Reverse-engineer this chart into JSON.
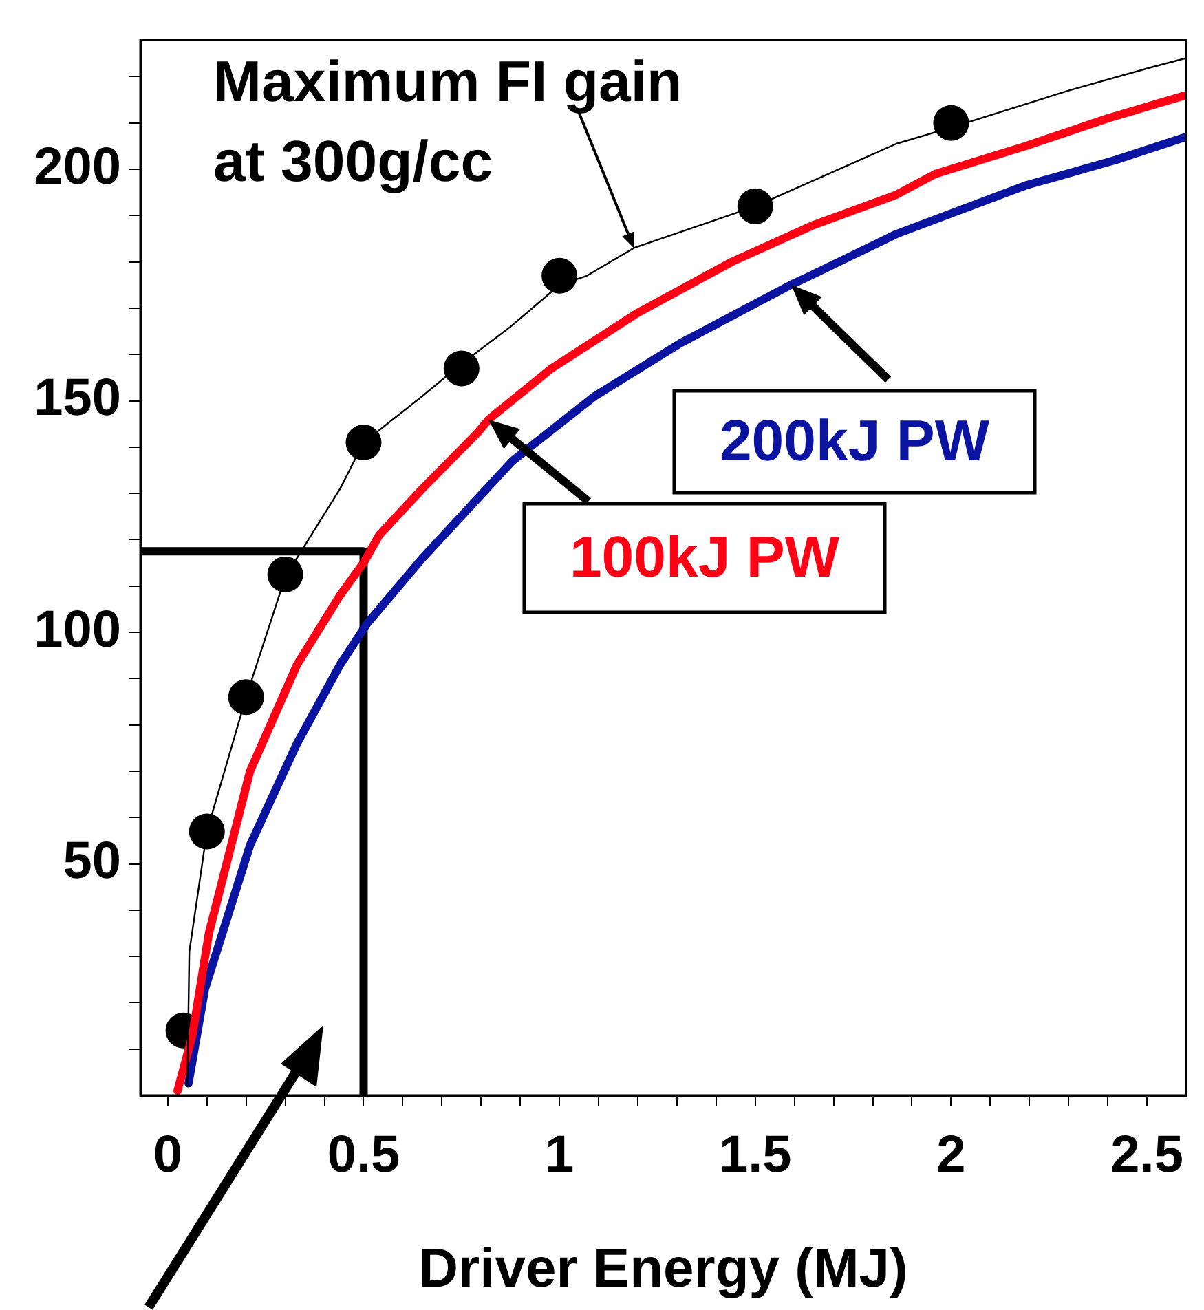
{
  "chart_data": {
    "type": "line",
    "xlabel": "Driver Energy (MJ)",
    "xlim": [
      -0.07,
      2.6
    ],
    "ylim": [
      0,
      228
    ],
    "xticks": [
      {
        "value": 0,
        "label": "0"
      },
      {
        "value": 0.1,
        "label": null
      },
      {
        "value": 0.2,
        "label": null
      },
      {
        "value": 0.3,
        "label": null
      },
      {
        "value": 0.4,
        "label": null
      },
      {
        "value": 0.5,
        "label": "0.5"
      },
      {
        "value": 0.6,
        "label": null
      },
      {
        "value": 0.7,
        "label": null
      },
      {
        "value": 0.8,
        "label": null
      },
      {
        "value": 0.9,
        "label": null
      },
      1,
      {
        "value": 1.1,
        "label": null
      },
      {
        "value": 1.2,
        "label": null
      },
      {
        "value": 1.3,
        "label": null
      },
      {
        "value": 1.4,
        "label": null
      },
      {
        "value": 1.5,
        "label": "1.5"
      },
      {
        "value": 1.6,
        "label": null
      },
      {
        "value": 1.7,
        "label": null
      },
      {
        "value": 1.8,
        "label": null
      },
      {
        "value": 1.9,
        "label": null
      },
      2,
      {
        "value": 2.1,
        "label": null
      },
      {
        "value": 2.2,
        "label": null
      },
      {
        "value": 2.3,
        "label": null
      },
      {
        "value": 2.4,
        "label": null
      },
      {
        "value": 2.5,
        "label": "2.5"
      }
    ],
    "yticks": [
      {
        "value": 10,
        "label": null
      },
      {
        "value": 20,
        "label": null
      },
      {
        "value": 30,
        "label": null
      },
      {
        "value": 40,
        "label": null
      },
      50,
      {
        "value": 60,
        "label": null
      },
      {
        "value": 70,
        "label": null
      },
      {
        "value": 80,
        "label": null
      },
      {
        "value": 90,
        "label": null
      },
      100,
      {
        "value": 110,
        "label": null
      },
      {
        "value": 120,
        "label": null
      },
      {
        "value": 130,
        "label": null
      },
      {
        "value": 140,
        "label": null
      },
      150,
      {
        "value": 160,
        "label": null
      },
      {
        "value": 170,
        "label": null
      },
      {
        "value": 180,
        "label": null
      },
      {
        "value": 190,
        "label": null
      },
      200,
      {
        "value": 210,
        "label": null
      },
      {
        "value": 220,
        "label": null
      }
    ],
    "grid": false,
    "legend": false,
    "marker": "none",
    "line_style": "solid",
    "annotations": [
      {
        "text": "Maximum FI gain at 300g/cc",
        "x": 1.19,
        "y": 183
      },
      {
        "text": "100kJ PW",
        "x": 0.82,
        "y": 146
      },
      {
        "text": "200kJ PW",
        "x": 1.59,
        "y": 175
      }
    ],
    "series": [
      {
        "color": "#000000",
        "x": [
          0.05,
          0.055,
          0.1,
          0.2,
          0.3,
          0.44,
          0.5,
          0.65,
          0.75,
          0.875,
          1.0,
          1.07,
          1.19,
          1.5,
          1.86,
          2.0,
          2.3,
          2.51,
          2.6
        ],
        "values": [
          2,
          31,
          57,
          86,
          112,
          131,
          141,
          151,
          158,
          166,
          175,
          177,
          183,
          192,
          205.5,
          209,
          217,
          222,
          224
        ]
      },
      {
        "type": "scatter",
        "marker": "circle",
        "color": "#000000",
        "x": [
          0.04,
          0.1,
          0.2,
          0.3,
          0.5,
          0.75,
          1.0,
          1.5,
          2.0
        ],
        "values": [
          14,
          57,
          86,
          112.5,
          141,
          157,
          177,
          192,
          210
        ]
      },
      {
        "color": "#ff0015",
        "x": [
          0.025,
          0.063,
          0.105,
          0.21,
          0.33,
          0.44,
          0.5,
          0.54,
          0.65,
          0.79,
          0.82,
          0.98,
          1.2,
          1.44,
          1.65,
          1.86,
          1.96,
          2.19,
          2.4,
          2.6
        ],
        "values": [
          1,
          13,
          35,
          70,
          93,
          108,
          115,
          121,
          131,
          143,
          146,
          157,
          169,
          180,
          188,
          194.5,
          199,
          205,
          211,
          216
        ]
      },
      {
        "color": "#0a14a0",
        "x": [
          0.053,
          0.095,
          0.21,
          0.33,
          0.44,
          0.51,
          0.65,
          0.88,
          1.09,
          1.31,
          1.59,
          1.64,
          1.86,
          2.19,
          2.42,
          2.6
        ],
        "values": [
          2.6,
          23,
          54,
          76,
          93,
          102,
          116,
          137,
          151,
          162.5,
          175,
          177,
          186,
          196.5,
          202,
          207
        ]
      },
      {
        "color": "#000000",
        "x": [
          -0.07,
          0.5,
          0.5
        ],
        "values": [
          117.5,
          117.5,
          0
        ]
      }
    ]
  }
}
